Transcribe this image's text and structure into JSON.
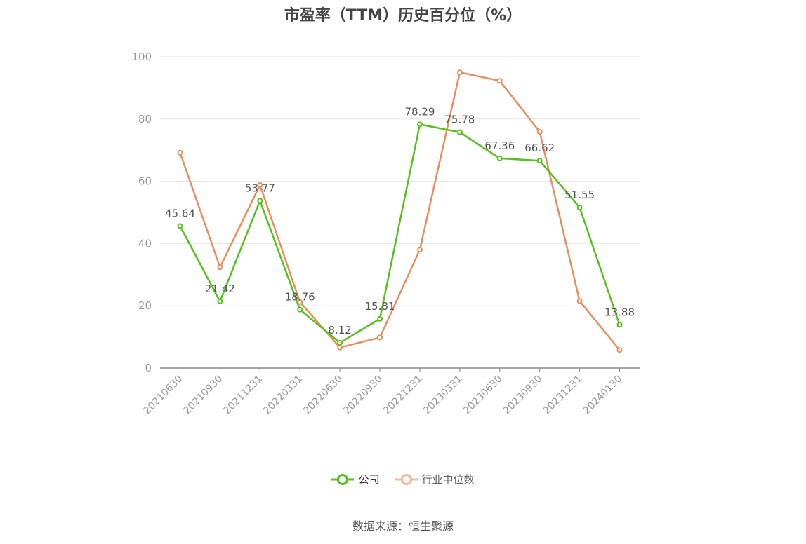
{
  "title": "市盈率（TTM）历史百分位（%）",
  "source": "数据来源：恒生聚源",
  "colors": {
    "company": "#52c41a",
    "industry": "#f08c5a",
    "axis": "#999999",
    "grid": "#e6e6e6"
  },
  "chart_data": {
    "type": "line",
    "title": "市盈率（TTM）历史百分位（%）",
    "categories": [
      "20210630",
      "20210930",
      "20211231",
      "20220331",
      "20220630",
      "20220930",
      "20221231",
      "20230331",
      "20230630",
      "20230930",
      "20231231",
      "20240130"
    ],
    "y_ticks": [
      0,
      20,
      40,
      60,
      80,
      100
    ],
    "ylim": [
      0,
      100
    ],
    "grid": true,
    "legend_position": "bottom",
    "series": [
      {
        "name": "公司",
        "values": [
          45.64,
          21.42,
          53.77,
          18.76,
          8.12,
          15.81,
          78.29,
          75.78,
          67.36,
          66.62,
          51.55,
          13.88
        ],
        "labels": [
          "45.64",
          "21.42",
          "53.77",
          "18.76",
          "8.12",
          "15.81",
          "78.29",
          "75.78",
          "67.36",
          "66.62",
          "51.55",
          "13.88"
        ]
      },
      {
        "name": "行业中位数",
        "values": [
          69.2,
          32.4,
          58.8,
          21.2,
          6.6,
          9.8,
          38.0,
          95.0,
          92.3,
          75.9,
          21.5,
          5.8
        ]
      }
    ]
  }
}
